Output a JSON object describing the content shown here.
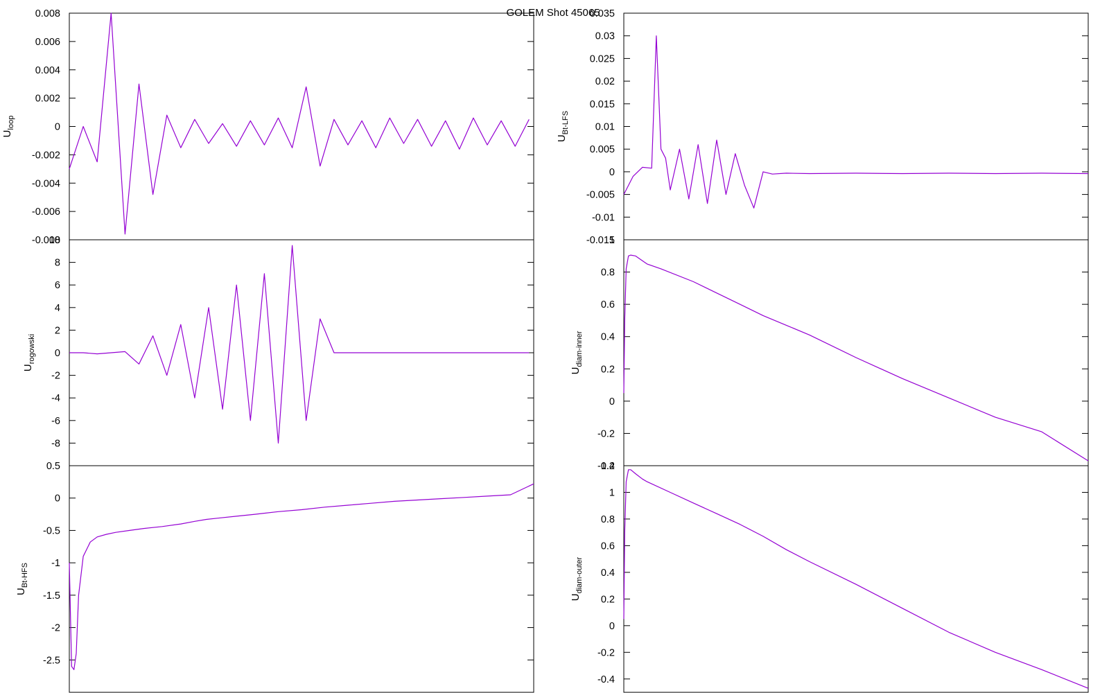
{
  "title": "GOLEM Shot 45065",
  "line_color": "#9400d3",
  "chart_data": [
    {
      "type": "line",
      "ylabel_main": "U",
      "ylabel_sub": "loop",
      "ylim": [
        -0.008,
        0.008
      ],
      "yticks": [
        "0.008",
        "0.006",
        "0.004",
        "0.002",
        "0",
        "-0.002",
        "-0.004",
        "-0.006",
        "-0.008"
      ],
      "grid": false,
      "series": [
        {
          "x": [
            0,
            0.3,
            0.6,
            0.9,
            1.2,
            1.5,
            1.8,
            2.1,
            2.4,
            2.7,
            3.0,
            3.3,
            3.6,
            3.9,
            4.2,
            4.5,
            4.8,
            5.1,
            5.4,
            5.7,
            6.0,
            6.3,
            6.6,
            6.9,
            7.2,
            7.5,
            7.8,
            8.1,
            8.4,
            8.7,
            9.0,
            9.3,
            9.6,
            9.9
          ],
          "y": [
            -0.003,
            0.0,
            -0.0025,
            0.008,
            -0.0076,
            0.003,
            -0.0048,
            0.0008,
            -0.0015,
            0.0005,
            -0.0012,
            0.0002,
            -0.0014,
            0.0004,
            -0.0013,
            0.0006,
            -0.0015,
            0.0028,
            -0.0028,
            0.0005,
            -0.0013,
            0.0004,
            -0.0015,
            0.0006,
            -0.0012,
            0.0005,
            -0.0014,
            0.0004,
            -0.0016,
            0.0006,
            -0.0013,
            0.0004,
            -0.0014,
            0.0005
          ]
        }
      ]
    },
    {
      "type": "line",
      "ylabel_main": "U",
      "ylabel_sub": "rogowski",
      "ylim": [
        -10,
        10
      ],
      "yticks": [
        "10",
        "8",
        "6",
        "4",
        "2",
        "0",
        "-2",
        "-4",
        "-6",
        "-8"
      ],
      "grid": false,
      "series": [
        {
          "x": [
            0,
            0.3,
            0.6,
            0.9,
            1.2,
            1.5,
            1.8,
            2.1,
            2.4,
            2.7,
            3.0,
            3.3,
            3.6,
            3.9,
            4.2,
            4.5,
            4.8,
            5.1,
            5.4,
            5.7,
            6.0,
            6.3,
            6.6,
            6.9,
            7.2,
            7.5,
            7.8,
            8.1,
            8.4,
            8.7,
            9.0,
            9.3,
            9.6,
            9.9
          ],
          "y": [
            0,
            0,
            -0.1,
            0,
            0.1,
            -1,
            1.5,
            -2,
            2.5,
            -4,
            4,
            -5,
            6,
            -6,
            7,
            -8,
            9.5,
            -6,
            3,
            0,
            0,
            0,
            0,
            0,
            0,
            0,
            0,
            0,
            0,
            0,
            0,
            0,
            0,
            0
          ]
        }
      ]
    },
    {
      "type": "line",
      "ylabel_main": "U",
      "ylabel_sub": "Bt-HFS",
      "ylim": [
        -3,
        0.5
      ],
      "yticks": [
        "0.5",
        "0",
        "-0.5",
        "-1",
        "-1.5",
        "-2",
        "-2.5"
      ],
      "grid": false,
      "series": [
        {
          "x": [
            0,
            0.05,
            0.1,
            0.15,
            0.2,
            0.3,
            0.45,
            0.6,
            0.8,
            1.0,
            1.3,
            1.6,
            2.0,
            2.4,
            2.7,
            2.95,
            3.2,
            3.6,
            4.0,
            4.5,
            5.0,
            5.5,
            6.0,
            6.5,
            7.0,
            7.5,
            8.0,
            8.5,
            9.0,
            9.5,
            10.0
          ],
          "y": [
            -1.0,
            -2.6,
            -2.65,
            -2.4,
            -1.5,
            -0.9,
            -0.68,
            -0.6,
            -0.56,
            -0.53,
            -0.5,
            -0.47,
            -0.44,
            -0.4,
            -0.36,
            -0.33,
            -0.31,
            -0.28,
            -0.25,
            -0.21,
            -0.18,
            -0.14,
            -0.11,
            -0.08,
            -0.05,
            -0.03,
            -0.01,
            0.01,
            0.03,
            0.05,
            0.22
          ]
        }
      ]
    },
    {
      "type": "line",
      "ylabel_main": "U",
      "ylabel_sub": "Bt-LFS",
      "ylim": [
        -0.015,
        0.035
      ],
      "yticks": [
        "0.035",
        "0.03",
        "0.025",
        "0.02",
        "0.015",
        "0.01",
        "0.005",
        "0",
        "-0.005",
        "-0.01",
        "-0.015"
      ],
      "grid": false,
      "series": [
        {
          "x": [
            0,
            0.2,
            0.4,
            0.6,
            0.7,
            0.8,
            0.9,
            1.0,
            1.2,
            1.4,
            1.6,
            1.8,
            2.0,
            2.2,
            2.4,
            2.6,
            2.8,
            3.0,
            3.2,
            3.5,
            4.0,
            5.0,
            6.0,
            7.0,
            8.0,
            9.0,
            10.0
          ],
          "y": [
            -0.005,
            -0.001,
            0.001,
            0.0008,
            0.03,
            0.005,
            0.003,
            -0.004,
            0.005,
            -0.006,
            0.006,
            -0.007,
            0.007,
            -0.005,
            0.004,
            -0.003,
            -0.008,
            0.0,
            -0.0005,
            -0.0003,
            -0.0004,
            -0.0003,
            -0.0004,
            -0.0003,
            -0.0004,
            -0.0003,
            -0.0004
          ]
        }
      ]
    },
    {
      "type": "line",
      "ylabel_main": "U",
      "ylabel_sub": "diam-inner",
      "ylim": [
        -0.4,
        1
      ],
      "yticks": [
        "1",
        "0.8",
        "0.6",
        "0.4",
        "0.2",
        "0",
        "-0.2",
        "-0.4"
      ],
      "grid": false,
      "series": [
        {
          "x": [
            0,
            0.02,
            0.05,
            0.1,
            0.15,
            0.25,
            0.4,
            0.5,
            0.8,
            1.5,
            2.0,
            2.5,
            3.0,
            3.5,
            4.0,
            5.0,
            6.0,
            7.0,
            8.0,
            9.0,
            10.0
          ],
          "y": [
            0.05,
            0.5,
            0.82,
            0.9,
            0.905,
            0.9,
            0.87,
            0.85,
            0.82,
            0.74,
            0.67,
            0.6,
            0.53,
            0.47,
            0.41,
            0.27,
            0.14,
            0.02,
            -0.1,
            -0.19,
            -0.37
          ]
        }
      ]
    },
    {
      "type": "line",
      "ylabel_main": "U",
      "ylabel_sub": "diam-outer",
      "ylim": [
        -0.5,
        1.2
      ],
      "yticks": [
        "1.2",
        "1",
        "0.8",
        "0.6",
        "0.4",
        "0.2",
        "0",
        "-0.2",
        "-0.4"
      ],
      "grid": false,
      "series": [
        {
          "x": [
            0,
            0.02,
            0.05,
            0.1,
            0.15,
            0.25,
            0.4,
            0.5,
            1.0,
            1.5,
            2.0,
            2.5,
            3.0,
            3.5,
            4.0,
            5.0,
            6.0,
            7.0,
            8.0,
            9.0,
            10.0
          ],
          "y": [
            0.05,
            0.7,
            1.08,
            1.17,
            1.17,
            1.14,
            1.1,
            1.08,
            1.0,
            0.92,
            0.84,
            0.76,
            0.67,
            0.57,
            0.48,
            0.31,
            0.13,
            -0.05,
            -0.2,
            -0.33,
            -0.47
          ]
        }
      ]
    }
  ]
}
